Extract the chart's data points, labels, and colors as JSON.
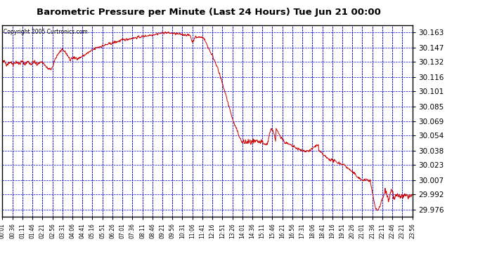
{
  "title": "Barometric Pressure per Minute (Last 24 Hours) Tue Jun 21 00:00",
  "copyright": "Copyright 2005 Curtronics.com",
  "background_color": "#ffffff",
  "plot_bg_color": "#ffffff",
  "line_color": "#cc0000",
  "grid_color": "#0000cc",
  "yticks": [
    29.976,
    29.992,
    30.007,
    30.023,
    30.038,
    30.054,
    30.069,
    30.085,
    30.101,
    30.116,
    30.132,
    30.147,
    30.163
  ],
  "ylim": [
    29.968,
    30.171
  ],
  "xtick_labels": [
    "00:01",
    "00:36",
    "01:11",
    "01:46",
    "02:21",
    "02:56",
    "03:31",
    "04:06",
    "04:41",
    "05:16",
    "05:51",
    "06:26",
    "07:01",
    "07:36",
    "08:11",
    "08:46",
    "09:21",
    "09:56",
    "10:31",
    "11:06",
    "11:41",
    "12:16",
    "12:51",
    "13:26",
    "14:01",
    "14:36",
    "15:11",
    "15:46",
    "16:21",
    "16:56",
    "17:31",
    "18:06",
    "18:41",
    "19:16",
    "19:51",
    "20:26",
    "21:01",
    "21:36",
    "22:11",
    "22:46",
    "23:21",
    "23:56"
  ]
}
